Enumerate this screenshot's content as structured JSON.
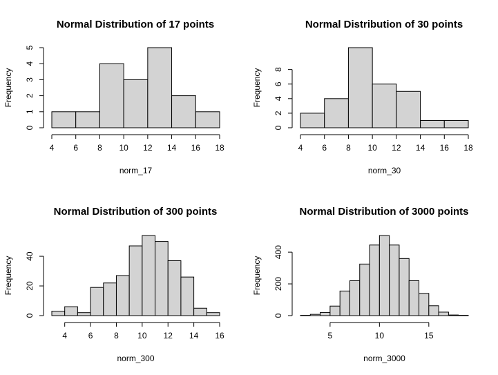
{
  "colors": {
    "bar_fill": "#d3d3d3",
    "bar_stroke": "#000000",
    "background": "#ffffff"
  },
  "chart_data": [
    {
      "type": "bar",
      "title": "Normal Distribution of 17 points",
      "xlabel": "norm_17",
      "ylabel": "Frequency",
      "xlim": [
        4,
        18
      ],
      "ylim": [
        0,
        5
      ],
      "bin_edges": [
        4,
        6,
        8,
        10,
        12,
        14,
        16,
        18
      ],
      "values": [
        1,
        1,
        4,
        3,
        5,
        2,
        1
      ],
      "x_ticks": [
        4,
        6,
        8,
        10,
        12,
        14,
        16,
        18
      ],
      "y_ticks": [
        0,
        1,
        2,
        3,
        4,
        5
      ],
      "grid": false
    },
    {
      "type": "bar",
      "title": "Normal Distribution of 30 points",
      "xlabel": "norm_30",
      "ylabel": "Frequency",
      "xlim": [
        4,
        18
      ],
      "ylim": [
        0,
        11
      ],
      "bin_edges": [
        4,
        6,
        8,
        10,
        12,
        14,
        16,
        18
      ],
      "values": [
        2,
        4,
        11,
        6,
        5,
        1,
        1
      ],
      "x_ticks": [
        4,
        6,
        8,
        10,
        12,
        14,
        16,
        18
      ],
      "y_ticks": [
        0,
        2,
        4,
        6,
        8
      ],
      "grid": false
    },
    {
      "type": "bar",
      "title": "Normal Distribution of 300 points",
      "xlabel": "norm_300",
      "ylabel": "Frequency",
      "xlim": [
        3,
        16
      ],
      "ylim": [
        0,
        54
      ],
      "bin_edges": [
        3,
        4,
        5,
        6,
        7,
        8,
        9,
        10,
        11,
        12,
        13,
        14,
        15,
        16
      ],
      "values": [
        3,
        6,
        2,
        19,
        22,
        27,
        47,
        54,
        50,
        37,
        26,
        5,
        2
      ],
      "x_ticks": [
        4,
        6,
        8,
        10,
        12,
        14,
        16
      ],
      "y_ticks": [
        0,
        20,
        40
      ],
      "grid": false
    },
    {
      "type": "bar",
      "title": "Normal Distribution of 3000 points",
      "xlabel": "norm_3000",
      "ylabel": "Frequency",
      "xlim": [
        2,
        19
      ],
      "ylim": [
        0,
        505
      ],
      "bin_edges": [
        2,
        3,
        4,
        5,
        6,
        7,
        8,
        9,
        10,
        11,
        12,
        13,
        14,
        15,
        16,
        17,
        18,
        19
      ],
      "values": [
        2,
        8,
        20,
        60,
        155,
        220,
        325,
        445,
        505,
        445,
        360,
        220,
        140,
        62,
        22,
        4,
        2
      ],
      "x_ticks": [
        5,
        10,
        15
      ],
      "y_ticks": [
        0,
        200,
        400
      ],
      "grid": false
    }
  ]
}
